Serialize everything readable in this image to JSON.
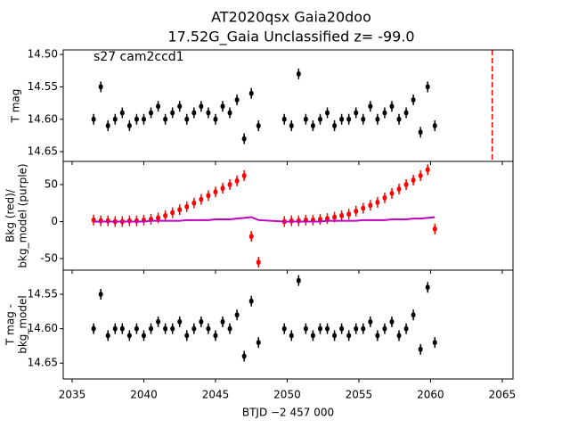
{
  "chart_data": [
    {
      "type": "scatter",
      "title": [
        "AT2020qsx  Gaia20doo",
        "17.52G_Gaia Unclassified z= -99.0"
      ],
      "annotation": "s27 cam2ccd1",
      "ylabel": [
        "T mag"
      ],
      "xlim": [
        2034.38,
        2065.75
      ],
      "xticks": [
        2035,
        2040,
        2045,
        2050,
        2055,
        2060,
        2065
      ],
      "ylim": [
        14.665,
        14.493
      ],
      "yticks": [
        {
          "value": 14.5,
          "label": "14.50"
        },
        14.55,
        {
          "value": 14.6,
          "label": "14.60"
        },
        14.65
      ],
      "vlines": [
        {
          "x": 2064.3,
          "color": "#ff0000",
          "style": "dashed"
        }
      ],
      "series": [
        {
          "type": "scatter",
          "color": "#000000",
          "x": [
            2036.5,
            2037,
            2037.5,
            2038,
            2038.5,
            2039,
            2039.5,
            2040,
            2040.5,
            2041,
            2041.5,
            2042,
            2042.5,
            2043,
            2043.5,
            2044,
            2044.5,
            2045,
            2045.5,
            2046,
            2046.5,
            2047,
            2047.5,
            2048,
            2049.8,
            2050.3,
            2050.8,
            2051.3,
            2051.8,
            2052.3,
            2052.8,
            2053.3,
            2053.8,
            2054.3,
            2054.8,
            2055.3,
            2055.8,
            2056.3,
            2056.8,
            2057.3,
            2057.8,
            2058.3,
            2058.8,
            2059.3,
            2059.8,
            2060.3
          ],
          "values": [
            14.6,
            14.55,
            14.61,
            14.6,
            14.59,
            14.61,
            14.6,
            14.6,
            14.59,
            14.58,
            14.6,
            14.59,
            14.58,
            14.6,
            14.59,
            14.58,
            14.59,
            14.6,
            14.58,
            14.59,
            14.57,
            14.63,
            14.56,
            14.61,
            14.6,
            14.61,
            14.53,
            14.6,
            14.61,
            14.6,
            14.59,
            14.61,
            14.6,
            14.6,
            14.59,
            14.6,
            14.58,
            14.6,
            14.59,
            14.58,
            14.6,
            14.59,
            14.57,
            14.62,
            14.55,
            14.61
          ]
        }
      ]
    },
    {
      "type": "scatter",
      "ylabel": [
        "Bkg (red)/",
        "bkg_model (purple)"
      ],
      "xlim": [
        2034.38,
        2065.75
      ],
      "xticks": [
        2035,
        2040,
        2045,
        2050,
        2055,
        2060,
        2065
      ],
      "ylim": [
        -65.7,
        81.3
      ],
      "yticks": [
        -50,
        0,
        50
      ],
      "series": [
        {
          "type": "scatter",
          "color": "#ff0000",
          "x": [
            2036.5,
            2037,
            2037.5,
            2038,
            2038.5,
            2039,
            2039.5,
            2040,
            2040.5,
            2041,
            2041.5,
            2042,
            2042.5,
            2043,
            2043.5,
            2044,
            2044.5,
            2045,
            2045.5,
            2046,
            2046.5,
            2047,
            2047.5,
            2048,
            2049.8,
            2050.3,
            2050.8,
            2051.3,
            2051.8,
            2052.3,
            2052.8,
            2053.3,
            2053.8,
            2054.3,
            2054.8,
            2055.3,
            2055.8,
            2056.3,
            2056.8,
            2057.3,
            2057.8,
            2058.3,
            2058.8,
            2059.3,
            2059.8,
            2060.3
          ],
          "values": [
            2,
            1,
            1,
            0,
            0,
            1,
            1,
            2,
            3,
            5,
            8,
            12,
            16,
            20,
            25,
            30,
            35,
            40,
            45,
            50,
            55,
            62,
            -20,
            -55,
            0,
            1,
            1,
            2,
            2,
            3,
            4,
            6,
            8,
            10,
            14,
            18,
            22,
            26,
            32,
            38,
            44,
            50,
            56,
            62,
            70,
            -10
          ]
        },
        {
          "type": "line",
          "color": "#bf00bf",
          "x": [
            2036.5,
            2037,
            2037.5,
            2038,
            2038.5,
            2039,
            2039.5,
            2040,
            2040.5,
            2041,
            2041.5,
            2042,
            2042.5,
            2043,
            2043.5,
            2044,
            2044.5,
            2045,
            2045.5,
            2046,
            2046.5,
            2047,
            2047.5,
            2048,
            2049.8,
            2050.3,
            2050.8,
            2051.3,
            2051.8,
            2052.3,
            2052.8,
            2053.3,
            2053.8,
            2054.3,
            2054.8,
            2055.3,
            2055.8,
            2056.3,
            2056.8,
            2057.3,
            2057.8,
            2058.3,
            2058.8,
            2059.3,
            2059.8,
            2060.3
          ],
          "values": [
            0,
            0,
            0,
            0,
            0,
            0,
            0,
            0,
            1,
            1,
            1,
            1,
            1,
            2,
            2,
            2,
            2,
            3,
            3,
            3,
            4,
            5,
            6,
            2,
            0,
            0,
            0,
            0,
            0,
            0,
            1,
            1,
            1,
            1,
            1,
            2,
            2,
            2,
            2,
            3,
            3,
            3,
            4,
            4,
            5,
            6
          ]
        }
      ]
    },
    {
      "type": "scatter",
      "ylabel": [
        "T mag -",
        "bkg_model"
      ],
      "xlabel": "BTJD −2 457 000",
      "xlim": [
        2034.38,
        2065.75
      ],
      "xticks": [
        2035,
        2040,
        2045,
        2050,
        2055,
        2060,
        2065
      ],
      "ylim": [
        14.673,
        14.515
      ],
      "yticks": [
        14.55,
        {
          "value": 14.6,
          "label": "14.60"
        },
        14.65
      ],
      "series": [
        {
          "type": "scatter",
          "color": "#000000",
          "x": [
            2036.5,
            2037,
            2037.5,
            2038,
            2038.5,
            2039,
            2039.5,
            2040,
            2040.5,
            2041,
            2041.5,
            2042,
            2042.5,
            2043,
            2043.5,
            2044,
            2044.5,
            2045,
            2045.5,
            2046,
            2046.5,
            2047,
            2047.5,
            2048,
            2049.8,
            2050.3,
            2050.8,
            2051.3,
            2051.8,
            2052.3,
            2052.8,
            2053.3,
            2053.8,
            2054.3,
            2054.8,
            2055.3,
            2055.8,
            2056.3,
            2056.8,
            2057.3,
            2057.8,
            2058.3,
            2058.8,
            2059.3,
            2059.8,
            2060.3
          ],
          "values": [
            14.6,
            14.55,
            14.61,
            14.6,
            14.6,
            14.61,
            14.6,
            14.61,
            14.6,
            14.59,
            14.6,
            14.6,
            14.59,
            14.61,
            14.6,
            14.59,
            14.6,
            14.61,
            14.59,
            14.6,
            14.58,
            14.64,
            14.56,
            14.62,
            14.6,
            14.61,
            14.53,
            14.6,
            14.61,
            14.6,
            14.6,
            14.61,
            14.6,
            14.61,
            14.6,
            14.6,
            14.59,
            14.61,
            14.6,
            14.59,
            14.61,
            14.6,
            14.58,
            14.63,
            14.54,
            14.62
          ]
        }
      ]
    }
  ]
}
